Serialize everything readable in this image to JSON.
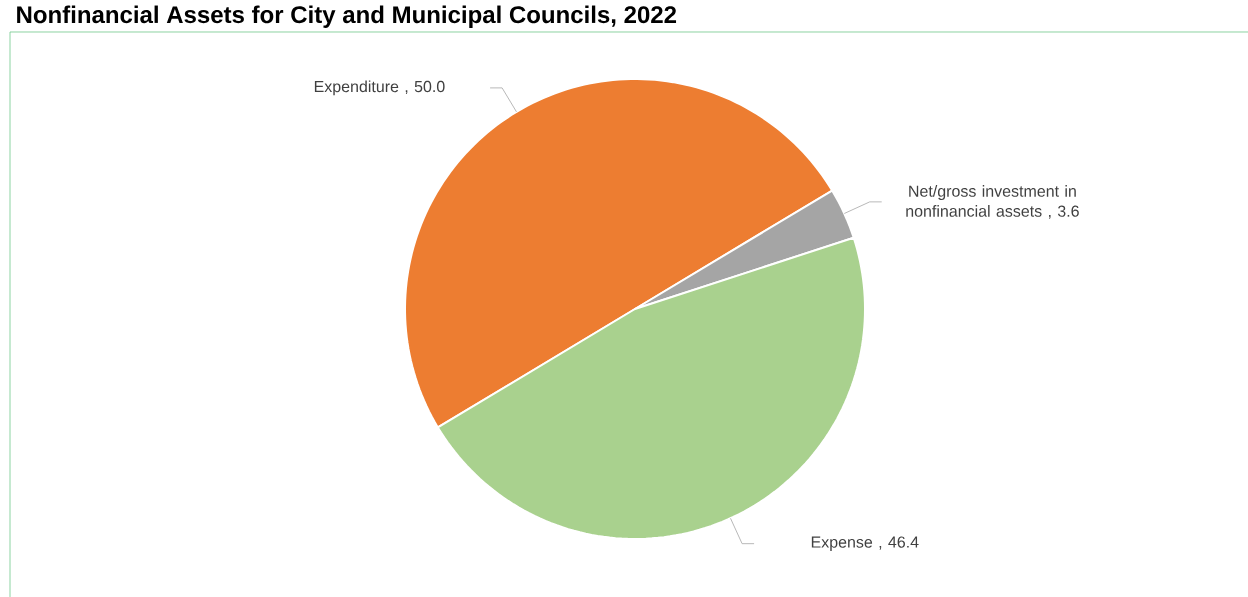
{
  "chart_data": {
    "type": "pie",
    "title": "Nonfinancial Assets for City and Municipal Councils, 2022",
    "categories": [
      "Expenditure",
      "Net/gross investment in nonfinancial assets",
      "Expense"
    ],
    "values": [
      50.0,
      3.6,
      46.4
    ],
    "colors": [
      "#ed7d31",
      "#a5a5a5",
      "#a9d18e"
    ],
    "value_labels": [
      ", 50.0",
      ", 3.6",
      ", 46.4"
    ]
  }
}
